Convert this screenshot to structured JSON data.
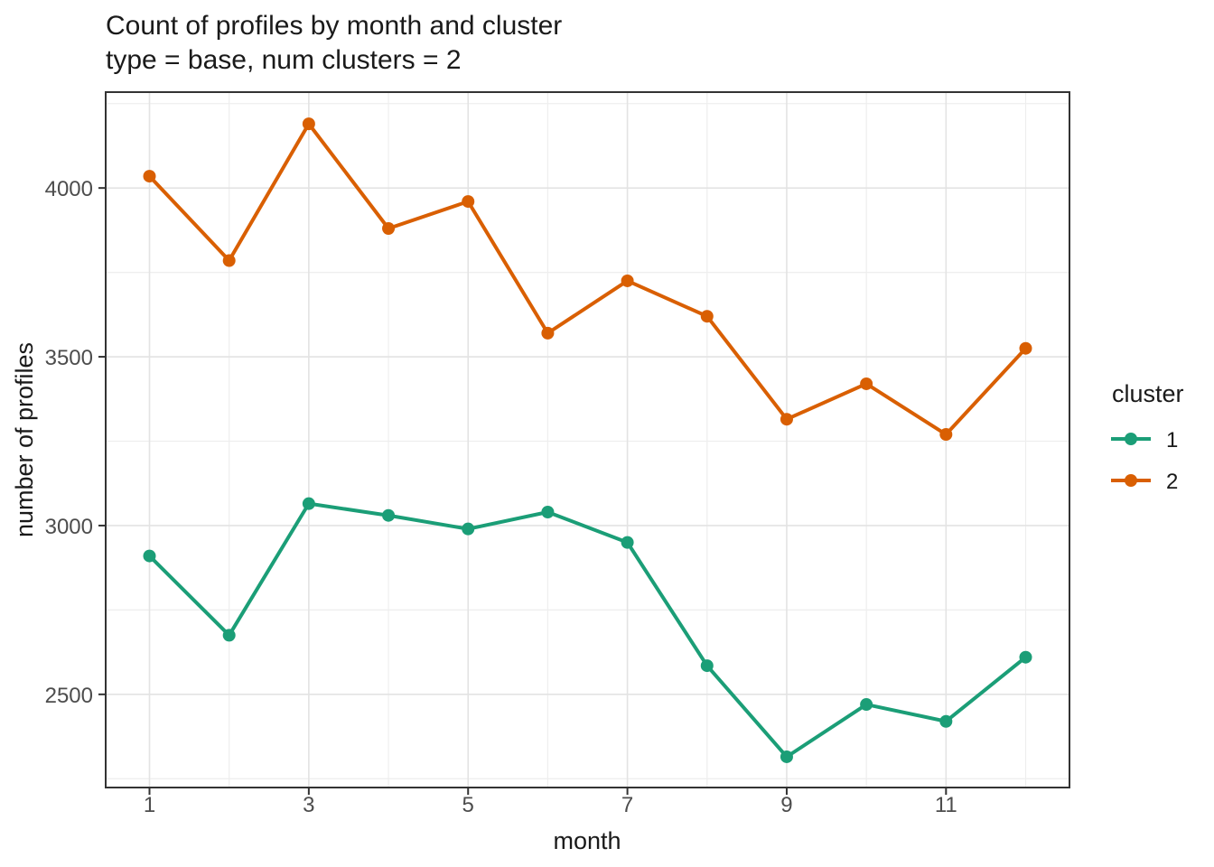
{
  "chart_data": {
    "type": "line",
    "title": "Count of profiles by month and cluster",
    "subtitle": "type = base, num clusters = 2",
    "xlabel": "month",
    "ylabel": "number of profiles",
    "legend_title": "cluster",
    "legend_position": "right",
    "grid": true,
    "x": [
      1,
      2,
      3,
      4,
      5,
      6,
      7,
      8,
      9,
      10,
      11,
      12
    ],
    "series": [
      {
        "name": "1",
        "color": "#1b9e77",
        "values": [
          2910,
          2675,
          3065,
          3030,
          2990,
          3040,
          2950,
          2585,
          2315,
          2470,
          2420,
          2610
        ]
      },
      {
        "name": "2",
        "color": "#d95f02",
        "values": [
          4035,
          3785,
          4190,
          3880,
          3960,
          3570,
          3725,
          3620,
          3315,
          3420,
          3270,
          3525
        ]
      }
    ],
    "x_ticks": {
      "values": [
        1,
        3,
        5,
        7,
        9,
        11
      ],
      "labels": [
        "1",
        "3",
        "5",
        "7",
        "9",
        "11"
      ]
    },
    "x_minor": [
      2,
      4,
      6,
      8,
      10,
      12
    ],
    "y_ticks": {
      "values": [
        2500,
        3000,
        3500,
        4000
      ],
      "labels": [
        "2500",
        "3000",
        "3500",
        "4000"
      ]
    },
    "y_minor": [
      2250,
      2750,
      3250,
      3750,
      4250
    ],
    "xlim": [
      0.45,
      12.55
    ],
    "ylim": [
      2224,
      4284
    ]
  },
  "theme": {
    "background": "#ffffff",
    "panel_fill": "#ffffff",
    "panel_border": "#333333",
    "grid_major": "#e3e3e3",
    "grid_minor": "#eeeeee",
    "tick_mark": "#333333",
    "tick_label": "#4d4d4d",
    "text": "#1a1a1a",
    "line_width": 4,
    "point_radius": 7
  }
}
